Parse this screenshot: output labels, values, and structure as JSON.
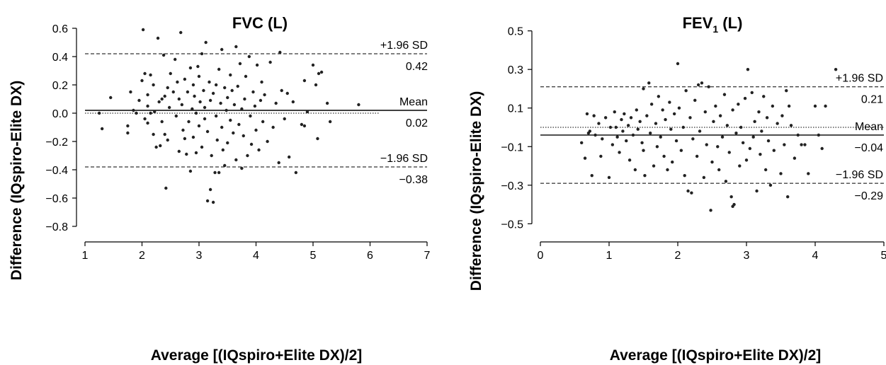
{
  "chart_data": [
    {
      "type": "scatter",
      "title": "FVC (L)",
      "title_sub": "",
      "title_suffix": "",
      "xlabel": "Average [(IQspiro+Elite DX)/2]",
      "ylabel": "Difference (IQspiro-Elite DX)",
      "xlim": [
        1,
        7
      ],
      "ylim": [
        -0.85,
        0.65
      ],
      "xticks": [
        1,
        2,
        3,
        4,
        5,
        6,
        7
      ],
      "xtick_labels": [
        "1",
        "2",
        "3",
        "4",
        "5",
        "6",
        "7"
      ],
      "yticks": [
        0.6,
        0.4,
        0.2,
        0.0,
        -0.2,
        -0.4,
        -0.6,
        -0.8
      ],
      "ytick_labels": [
        "0.6",
        "0.4",
        "0.2",
        "0.0",
        "−0.2",
        "−0.4",
        "−0.6",
        "−0.8"
      ],
      "grid": false,
      "reference_lines": [
        {
          "name": "+1.96 SD",
          "label": "+1.96 SD",
          "value": 0.42,
          "value_label": "0.42",
          "style": "dashed"
        },
        {
          "name": "Mean",
          "label": "Mean",
          "value": 0.02,
          "value_label": "0.02",
          "style": "solid"
        },
        {
          "name": "−1.96 SD",
          "label": "−1.96 SD",
          "value": -0.38,
          "value_label": "−0.38",
          "style": "dashed"
        },
        {
          "name": "zero",
          "label": "",
          "value": 0.0,
          "value_label": "",
          "style": "dotted"
        }
      ],
      "points": [
        [
          1.25,
          0.0
        ],
        [
          1.3,
          -0.11
        ],
        [
          1.45,
          0.11
        ],
        [
          1.75,
          -0.09
        ],
        [
          1.75,
          -0.14
        ],
        [
          1.8,
          0.15
        ],
        [
          1.85,
          0.02
        ],
        [
          1.9,
          0.0
        ],
        [
          1.95,
          0.09
        ],
        [
          2.0,
          0.23
        ],
        [
          2.02,
          0.59
        ],
        [
          2.05,
          0.28
        ],
        [
          2.05,
          -0.04
        ],
        [
          2.1,
          0.05
        ],
        [
          2.1,
          0.13
        ],
        [
          2.1,
          -0.07
        ],
        [
          2.15,
          0.27
        ],
        [
          2.15,
          0.0
        ],
        [
          2.2,
          0.2
        ],
        [
          2.2,
          -0.15
        ],
        [
          2.22,
          0.01
        ],
        [
          2.25,
          -0.24
        ],
        [
          2.28,
          0.53
        ],
        [
          2.3,
          0.08
        ],
        [
          2.32,
          -0.23
        ],
        [
          2.35,
          0.1
        ],
        [
          2.35,
          -0.06
        ],
        [
          2.38,
          0.41
        ],
        [
          2.4,
          0.12
        ],
        [
          2.4,
          -0.15
        ],
        [
          2.42,
          -0.53
        ],
        [
          2.45,
          0.18
        ],
        [
          2.45,
          -0.19
        ],
        [
          2.48,
          0.04
        ],
        [
          2.5,
          0.28
        ],
        [
          2.55,
          0.15
        ],
        [
          2.58,
          0.38
        ],
        [
          2.6,
          -0.02
        ],
        [
          2.62,
          0.22
        ],
        [
          2.65,
          0.1
        ],
        [
          2.65,
          -0.27
        ],
        [
          2.68,
          0.57
        ],
        [
          2.7,
          0.06
        ],
        [
          2.72,
          -0.12
        ],
        [
          2.75,
          0.24
        ],
        [
          2.75,
          -0.18
        ],
        [
          2.78,
          -0.29
        ],
        [
          2.8,
          0.15
        ],
        [
          2.82,
          -0.06
        ],
        [
          2.85,
          0.32
        ],
        [
          2.85,
          -0.41
        ],
        [
          2.88,
          0.03
        ],
        [
          2.9,
          -0.17
        ],
        [
          2.9,
          0.2
        ],
        [
          2.92,
          0.12
        ],
        [
          2.95,
          -0.28
        ],
        [
          2.95,
          0.0
        ],
        [
          2.98,
          0.33
        ],
        [
          3.0,
          -0.09
        ],
        [
          3.0,
          0.26
        ],
        [
          3.02,
          0.08
        ],
        [
          3.05,
          0.42
        ],
        [
          3.05,
          -0.24
        ],
        [
          3.08,
          0.16
        ],
        [
          3.1,
          -0.04
        ],
        [
          3.1,
          0.04
        ],
        [
          3.12,
          0.5
        ],
        [
          3.15,
          -0.62
        ],
        [
          3.15,
          -0.13
        ],
        [
          3.18,
          0.22
        ],
        [
          3.2,
          -0.54
        ],
        [
          3.2,
          0.09
        ],
        [
          3.22,
          -0.3
        ],
        [
          3.25,
          -0.63
        ],
        [
          3.25,
          0.14
        ],
        [
          3.28,
          -0.42
        ],
        [
          3.3,
          -0.02
        ],
        [
          3.3,
          0.2
        ],
        [
          3.32,
          -0.19
        ],
        [
          3.35,
          0.31
        ],
        [
          3.35,
          -0.42
        ],
        [
          3.38,
          0.07
        ],
        [
          3.4,
          0.45
        ],
        [
          3.4,
          -0.1
        ],
        [
          3.42,
          -0.26
        ],
        [
          3.45,
          0.18
        ],
        [
          3.45,
          -0.37
        ],
        [
          3.48,
          0.02
        ],
        [
          3.5,
          0.11
        ],
        [
          3.5,
          -0.21
        ],
        [
          3.55,
          0.27
        ],
        [
          3.55,
          -0.05
        ],
        [
          3.58,
          0.16
        ],
        [
          3.6,
          -0.14
        ],
        [
          3.62,
          0.06
        ],
        [
          3.65,
          0.47
        ],
        [
          3.65,
          -0.33
        ],
        [
          3.68,
          0.19
        ],
        [
          3.7,
          -0.08
        ],
        [
          3.72,
          0.35
        ],
        [
          3.75,
          0.03
        ],
        [
          3.75,
          -0.39
        ],
        [
          3.78,
          -0.16
        ],
        [
          3.8,
          0.1
        ],
        [
          3.82,
          0.26
        ],
        [
          3.85,
          -0.3
        ],
        [
          3.88,
          0.4
        ],
        [
          3.9,
          -0.02
        ],
        [
          3.92,
          -0.22
        ],
        [
          3.95,
          0.15
        ],
        [
          3.98,
          0.05
        ],
        [
          4.0,
          -0.12
        ],
        [
          4.02,
          0.34
        ],
        [
          4.05,
          -0.26
        ],
        [
          4.08,
          0.09
        ],
        [
          4.1,
          0.22
        ],
        [
          4.12,
          -0.06
        ],
        [
          4.15,
          0.13
        ],
        [
          4.2,
          -0.2
        ],
        [
          4.25,
          0.36
        ],
        [
          4.3,
          -0.1
        ],
        [
          4.35,
          0.07
        ],
        [
          4.4,
          -0.35
        ],
        [
          4.42,
          0.43
        ],
        [
          4.45,
          0.16
        ],
        [
          4.5,
          -0.04
        ],
        [
          4.55,
          0.14
        ],
        [
          4.58,
          -0.31
        ],
        [
          4.65,
          0.08
        ],
        [
          4.7,
          -0.42
        ],
        [
          4.8,
          -0.08
        ],
        [
          4.85,
          0.23
        ],
        [
          4.85,
          -0.09
        ],
        [
          4.9,
          0.01
        ],
        [
          5.0,
          0.34
        ],
        [
          5.05,
          0.2
        ],
        [
          5.08,
          -0.18
        ],
        [
          5.1,
          0.28
        ],
        [
          5.15,
          0.29
        ],
        [
          5.25,
          0.07
        ],
        [
          5.3,
          -0.06
        ],
        [
          5.8,
          0.06
        ]
      ]
    },
    {
      "type": "scatter",
      "title": "FEV",
      "title_sub": "1",
      "title_suffix": " (L)",
      "xlabel": "Average [(IQspiro+Elite DX)/2]",
      "ylabel": "Difference (IQspiro-Elite DX)",
      "xlim": [
        0,
        5
      ],
      "ylim": [
        -0.55,
        0.55
      ],
      "xticks": [
        0,
        1,
        2,
        3,
        4,
        5
      ],
      "xtick_labels": [
        "0",
        "1",
        "2",
        "3",
        "4",
        "5"
      ],
      "yticks": [
        0.5,
        0.3,
        0.1,
        -0.1,
        -0.3,
        -0.5
      ],
      "ytick_labels": [
        "0.5",
        "0.3",
        "0.1",
        "−0.1",
        "−0.3",
        "−0.5"
      ],
      "grid": false,
      "reference_lines": [
        {
          "name": "+1.96 SD",
          "label": "+1.96 SD",
          "value": 0.21,
          "value_label": "0.21",
          "style": "dashed"
        },
        {
          "name": "Mean",
          "label": "Mean",
          "value": -0.04,
          "value_label": "−0.04",
          "style": "solid"
        },
        {
          "name": "−1.96 SD",
          "label": "−1.96 SD",
          "value": -0.29,
          "value_label": "−0.29",
          "style": "dashed"
        },
        {
          "name": "zero",
          "label": "",
          "value": 0.0,
          "value_label": "",
          "style": "dotted"
        }
      ],
      "points": [
        [
          0.6,
          -0.08
        ],
        [
          0.65,
          -0.16
        ],
        [
          0.68,
          0.07
        ],
        [
          0.7,
          -0.03
        ],
        [
          0.72,
          -0.02
        ],
        [
          0.75,
          -0.25
        ],
        [
          0.78,
          0.06
        ],
        [
          0.8,
          -0.04
        ],
        [
          0.85,
          0.02
        ],
        [
          0.88,
          -0.15
        ],
        [
          0.9,
          -0.06
        ],
        [
          0.95,
          0.05
        ],
        [
          1.0,
          -0.26
        ],
        [
          1.02,
          0.0
        ],
        [
          1.05,
          -0.09
        ],
        [
          1.08,
          0.08
        ],
        [
          1.1,
          0.0
        ],
        [
          1.12,
          -0.05
        ],
        [
          1.15,
          -0.13
        ],
        [
          1.18,
          0.04
        ],
        [
          1.2,
          -0.02
        ],
        [
          1.22,
          0.07
        ],
        [
          1.25,
          -0.07
        ],
        [
          1.28,
          0.01
        ],
        [
          1.3,
          -0.17
        ],
        [
          1.32,
          0.05
        ],
        [
          1.35,
          -0.04
        ],
        [
          1.38,
          -0.22
        ],
        [
          1.4,
          0.09
        ],
        [
          1.42,
          -0.01
        ],
        [
          1.45,
          0.03
        ],
        [
          1.48,
          -0.08
        ],
        [
          1.5,
          0.2
        ],
        [
          1.5,
          -0.12
        ],
        [
          1.52,
          -0.25
        ],
        [
          1.55,
          0.06
        ],
        [
          1.58,
          0.23
        ],
        [
          1.6,
          -0.03
        ],
        [
          1.62,
          0.12
        ],
        [
          1.65,
          -0.2
        ],
        [
          1.68,
          0.02
        ],
        [
          1.7,
          -0.1
        ],
        [
          1.72,
          0.16
        ],
        [
          1.75,
          -0.05
        ],
        [
          1.78,
          0.09
        ],
        [
          1.8,
          -0.15
        ],
        [
          1.82,
          0.04
        ],
        [
          1.85,
          -0.22
        ],
        [
          1.88,
          0.13
        ],
        [
          1.9,
          -0.01
        ],
        [
          1.92,
          -0.18
        ],
        [
          1.95,
          0.07
        ],
        [
          1.98,
          -0.07
        ],
        [
          2.0,
          0.33
        ],
        [
          2.02,
          0.1
        ],
        [
          2.05,
          -0.12
        ],
        [
          2.08,
          0.0
        ],
        [
          2.1,
          -0.25
        ],
        [
          2.12,
          0.19
        ],
        [
          2.15,
          -0.33
        ],
        [
          2.18,
          0.05
        ],
        [
          2.2,
          -0.34
        ],
        [
          2.22,
          -0.06
        ],
        [
          2.25,
          0.14
        ],
        [
          2.28,
          -0.15
        ],
        [
          2.3,
          0.22
        ],
        [
          2.32,
          -0.02
        ],
        [
          2.35,
          0.23
        ],
        [
          2.38,
          -0.26
        ],
        [
          2.4,
          0.08
        ],
        [
          2.42,
          -0.09
        ],
        [
          2.45,
          0.21
        ],
        [
          2.48,
          -0.43
        ],
        [
          2.5,
          -0.18
        ],
        [
          2.52,
          0.03
        ],
        [
          2.55,
          0.11
        ],
        [
          2.58,
          -0.1
        ],
        [
          2.6,
          -0.22
        ],
        [
          2.62,
          0.06
        ],
        [
          2.65,
          -0.05
        ],
        [
          2.68,
          0.17
        ],
        [
          2.7,
          -0.28
        ],
        [
          2.72,
          0.01
        ],
        [
          2.75,
          -0.13
        ],
        [
          2.78,
          -0.36
        ],
        [
          2.8,
          -0.41
        ],
        [
          2.8,
          0.09
        ],
        [
          2.82,
          -0.4
        ],
        [
          2.85,
          -0.03
        ],
        [
          2.88,
          0.12
        ],
        [
          2.9,
          -0.2
        ],
        [
          2.92,
          0.0
        ],
        [
          2.95,
          -0.08
        ],
        [
          2.98,
          0.15
        ],
        [
          3.0,
          -0.17
        ],
        [
          3.02,
          0.3
        ],
        [
          3.05,
          -0.11
        ],
        [
          3.08,
          0.18
        ],
        [
          3.1,
          -0.05
        ],
        [
          3.12,
          0.03
        ],
        [
          3.15,
          -0.33
        ],
        [
          3.18,
          0.08
        ],
        [
          3.2,
          -0.14
        ],
        [
          3.22,
          -0.02
        ],
        [
          3.25,
          0.16
        ],
        [
          3.28,
          -0.22
        ],
        [
          3.3,
          0.05
        ],
        [
          3.32,
          -0.07
        ],
        [
          3.35,
          -0.3
        ],
        [
          3.38,
          0.11
        ],
        [
          3.4,
          -0.12
        ],
        [
          3.45,
          0.02
        ],
        [
          3.5,
          -0.24
        ],
        [
          3.52,
          0.06
        ],
        [
          3.55,
          -0.09
        ],
        [
          3.58,
          0.19
        ],
        [
          3.6,
          -0.36
        ],
        [
          3.62,
          0.11
        ],
        [
          3.65,
          0.01
        ],
        [
          3.7,
          -0.16
        ],
        [
          3.75,
          -0.04
        ],
        [
          3.8,
          -0.09
        ],
        [
          3.85,
          -0.09
        ],
        [
          3.9,
          -0.24
        ],
        [
          4.0,
          0.11
        ],
        [
          4.05,
          -0.04
        ],
        [
          4.1,
          -0.11
        ],
        [
          4.15,
          0.11
        ],
        [
          4.3,
          0.3
        ]
      ]
    }
  ]
}
